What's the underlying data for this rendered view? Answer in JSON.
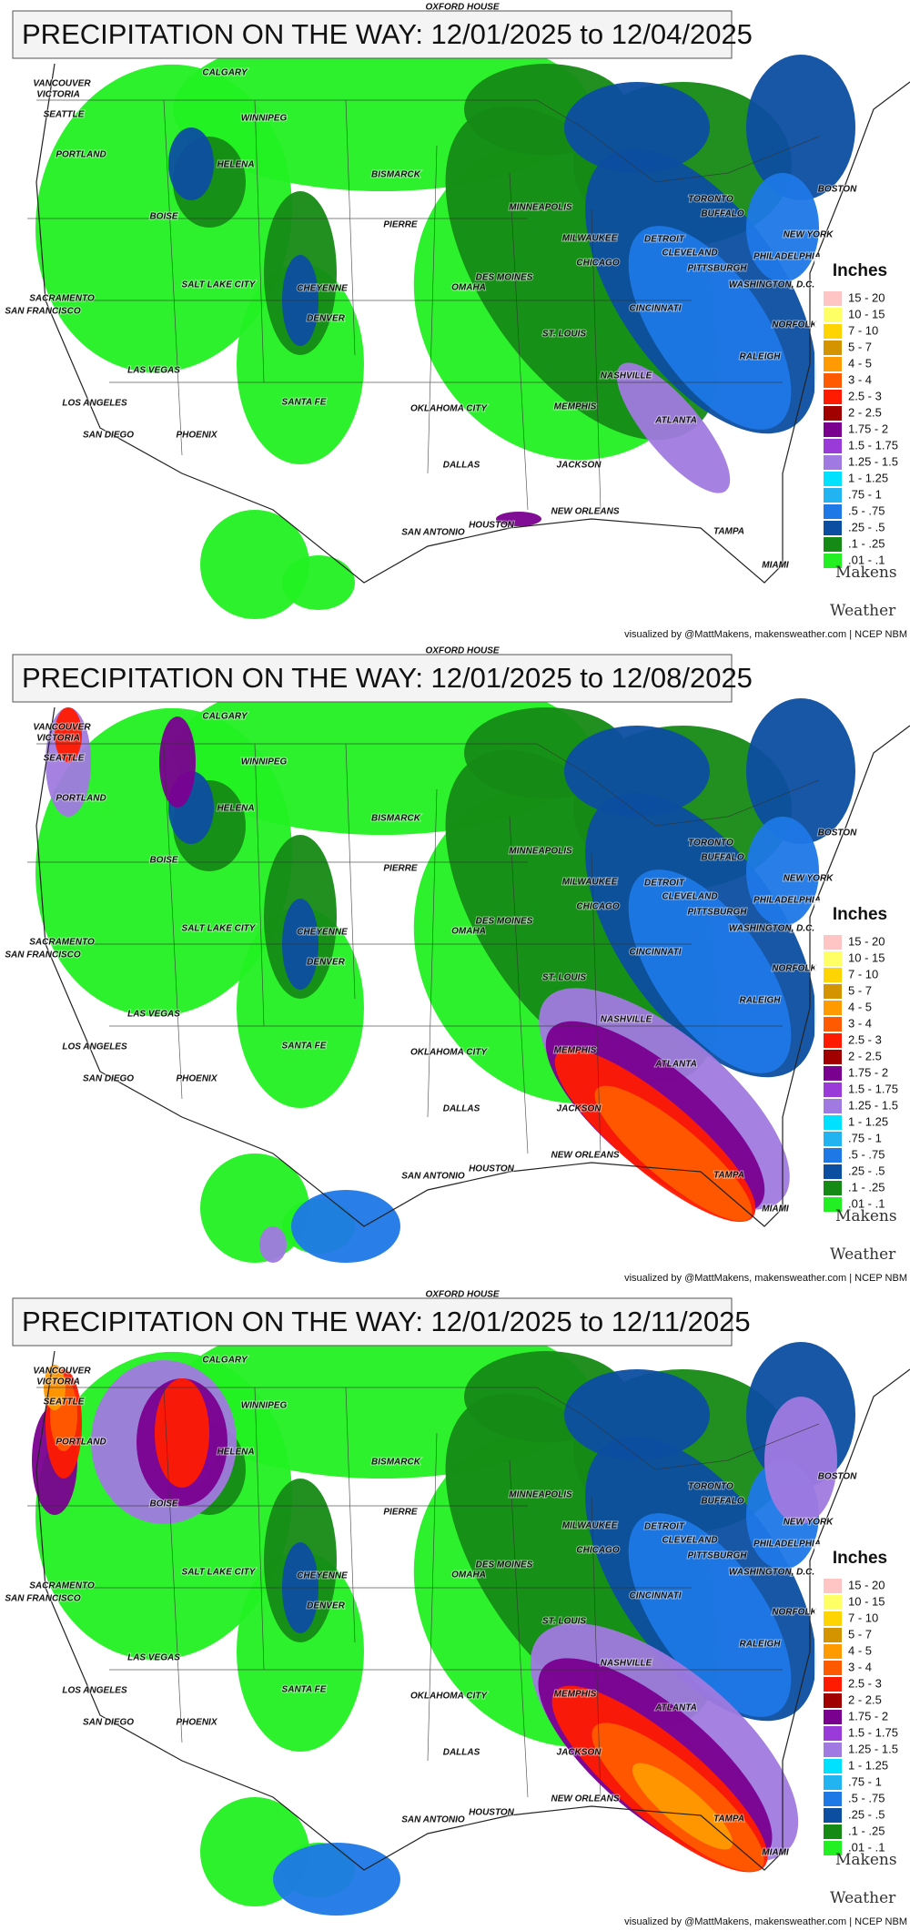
{
  "panels": [
    {
      "title": "PRECIPITATION ON THE WAY: 12/01/2025 to 12/04/2025",
      "credit": "visualized by @MattMakens, makensweather.com | NCEP NBM"
    },
    {
      "title": "PRECIPITATION ON THE WAY: 12/01/2025 to 12/08/2025",
      "credit": "visualized by @MattMakens, makensweather.com | NCEP NBM"
    },
    {
      "title": "PRECIPITATION ON THE WAY: 12/01/2025 to 12/11/2025",
      "credit": "visualized by @MattMakens, makensweather.com | NCEP NBM"
    }
  ],
  "legend": {
    "title": "Inches",
    "items": [
      {
        "label": "15 - 20",
        "color": "#ffc4c4"
      },
      {
        "label": "10 - 15",
        "color": "#ffff66"
      },
      {
        "label": "7 - 10",
        "color": "#ffd400"
      },
      {
        "label": "5 - 7",
        "color": "#d49400"
      },
      {
        "label": "4 - 5",
        "color": "#ff9a00"
      },
      {
        "label": "3 - 4",
        "color": "#ff5a00"
      },
      {
        "label": "2.5 - 3",
        "color": "#ff1a00"
      },
      {
        "label": "2 - 2.5",
        "color": "#a00000"
      },
      {
        "label": "1.75 - 2",
        "color": "#7a0090"
      },
      {
        "label": "1.5 - 1.75",
        "color": "#9a3ad8"
      },
      {
        "label": "1.25 - 1.5",
        "color": "#a07ae0"
      },
      {
        "label": "1 - 1.25",
        "color": "#00e0ff"
      },
      {
        "label": ".75 - 1",
        "color": "#22b4f0"
      },
      {
        "label": ".5 - .75",
        "color": "#1e78e6"
      },
      {
        "label": ".25 - .5",
        "color": "#0c4ea0"
      },
      {
        "label": ".1 - .25",
        "color": "#158a15"
      },
      {
        "label": ".01 - .1",
        "color": "#22f022"
      }
    ]
  },
  "logo": {
    "line1": "Makens",
    "line2": "Weather"
  },
  "map_labels": [
    "SEATTLE",
    "VANCOUVER",
    "VICTORIA",
    "CALGARY",
    "PORTLAND",
    "BOISE",
    "HELENA",
    "SACRAMENTO",
    "SAN FRANCISCO",
    "LAS VEGAS",
    "LOS ANGELES",
    "SAN DIEGO",
    "PHOENIX",
    "SALT LAKE CITY",
    "CHEYENNE",
    "DENVER",
    "SANTA FE",
    "BISMARCK",
    "PIERRE",
    "MINNEAPOLIS",
    "DES MOINES",
    "OMAHA",
    "ST. LOUIS",
    "OKLAHOMA CITY",
    "DALLAS",
    "SAN ANTONIO",
    "HOUSTON",
    "NEW ORLEANS",
    "JACKSON",
    "MEMPHIS",
    "NASHVILLE",
    "ATLANTA",
    "TAMPA",
    "MIAMI",
    "CHICAGO",
    "MILWAUKEE",
    "DETROIT",
    "CLEVELAND",
    "PITTSBURGH",
    "CINCINNATI",
    "TORONTO",
    "BUFFALO",
    "NEW YORK",
    "BOSTON",
    "PHILADELPHIA",
    "WASHINGTON, D.C.",
    "NORFOLK",
    "RALEIGH",
    "OXFORD HOUSE",
    "WINNIPEG"
  ]
}
